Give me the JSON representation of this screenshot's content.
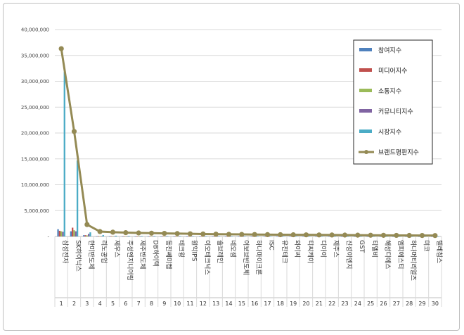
{
  "chart_data": {
    "type": "bar",
    "title": "",
    "xlabel": "",
    "ylabel": "",
    "ylim": [
      0,
      40000000
    ],
    "yticks": [
      0,
      5000000,
      10000000,
      15000000,
      20000000,
      25000000,
      30000000,
      35000000,
      40000000
    ],
    "ytick_labels": [
      "-",
      "5,000,000",
      "10,000,000",
      "15,000,000",
      "20,000,000",
      "25,000,000",
      "30,000,000",
      "35,000,000",
      "40,000,000"
    ],
    "grid": true,
    "legend_position": "right",
    "ranks": [
      "1",
      "2",
      "3",
      "4",
      "5",
      "6",
      "7",
      "8",
      "9",
      "10",
      "11",
      "12",
      "13",
      "14",
      "15",
      "16",
      "17",
      "18",
      "19",
      "20",
      "21",
      "22",
      "23",
      "24",
      "25",
      "26",
      "27",
      "28",
      "29",
      "30"
    ],
    "categories": [
      "삼성전자",
      "SK하이닉스",
      "한미반도체",
      "리노공업",
      "제우스",
      "주성엔지니어링",
      "제주반도체",
      "DB하이텍",
      "동진쎄미켐",
      "테크윙",
      "원익IPS",
      "이오테크닉스",
      "솔브레인",
      "네오셈",
      "어보브반도체",
      "하나마이크론",
      "ISC",
      "유진테크",
      "와이씨",
      "티씨케이",
      "디아이",
      "제주스",
      "신성이엔지",
      "GST",
      "티엘비",
      "해성디에스",
      "엠피에스티",
      "하나머티리얼즈",
      "미코",
      "텔레칩스"
    ],
    "series": [
      {
        "name": "참여지수",
        "color": "#4f81bd",
        "kind": "bar",
        "values": [
          1400000,
          1000000,
          250000,
          60000,
          50000,
          45000,
          40000,
          35000,
          30000,
          28000,
          26000,
          25000,
          24000,
          22000,
          20000,
          19000,
          18000,
          17000,
          16000,
          15000,
          14000,
          13000,
          12000,
          11000,
          10000,
          9000,
          8000,
          7000,
          6000,
          5000
        ]
      },
      {
        "name": "미디어지수",
        "color": "#c0504d",
        "kind": "bar",
        "values": [
          1100000,
          1700000,
          250000,
          80000,
          70000,
          60000,
          50000,
          50000,
          45000,
          40000,
          38000,
          36000,
          34000,
          32000,
          30000,
          28000,
          26000,
          24000,
          22000,
          20000,
          18000,
          16000,
          15000,
          14000,
          13000,
          12000,
          11000,
          10000,
          9000,
          8000
        ]
      },
      {
        "name": "소통지수",
        "color": "#9bbb59",
        "kind": "bar",
        "values": [
          1000000,
          1200000,
          200000,
          60000,
          50000,
          45000,
          40000,
          40000,
          35000,
          30000,
          28000,
          26000,
          24000,
          22000,
          20000,
          18000,
          17000,
          16000,
          15000,
          14000,
          13000,
          12000,
          11000,
          10000,
          9000,
          8000,
          7000,
          6000,
          5000,
          4000
        ]
      },
      {
        "name": "커뮤니티지수",
        "color": "#8064a2",
        "kind": "bar",
        "values": [
          900000,
          1000000,
          500000,
          70000,
          60000,
          50000,
          45000,
          40000,
          35000,
          30000,
          28000,
          26000,
          24000,
          22000,
          20000,
          18000,
          17000,
          16000,
          15000,
          14000,
          13000,
          12000,
          11000,
          10000,
          9000,
          8000,
          7000,
          6000,
          5000,
          4000
        ]
      },
      {
        "name": "시장지수",
        "color": "#4bacc6",
        "kind": "bar",
        "values": [
          31800000,
          14700000,
          800000,
          280000,
          150000,
          120000,
          100000,
          100000,
          90000,
          80000,
          70000,
          60000,
          50000,
          45000,
          40000,
          35000,
          30000,
          28000,
          26000,
          24000,
          22000,
          20000,
          18000,
          16000,
          15000,
          14000,
          13000,
          12000,
          11000,
          10000
        ]
      },
      {
        "name": "브랜드평판지수",
        "color": "#948a54",
        "kind": "line",
        "values": [
          36300000,
          20300000,
          2300000,
          950000,
          830000,
          740000,
          680000,
          640000,
          600000,
          560000,
          520000,
          480000,
          450000,
          420000,
          400000,
          380000,
          360000,
          345000,
          330000,
          315000,
          300000,
          285000,
          270000,
          255000,
          240000,
          225000,
          210000,
          200000,
          190000,
          180000
        ]
      }
    ]
  }
}
